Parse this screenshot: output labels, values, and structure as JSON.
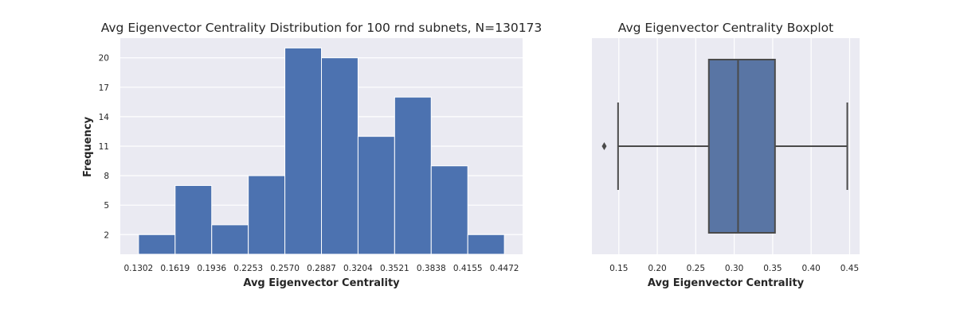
{
  "colors": {
    "panel_bg": "#eaeaf2",
    "grid": "#ffffff",
    "bar_fill": "#4c72b0",
    "box_fill": "#5975a4",
    "line": "#4a4a4a",
    "text": "#262626"
  },
  "chart_data": [
    {
      "type": "bar",
      "title": "Avg Eigenvector Centrality Distribution for 100 rnd subnets, N=130173",
      "xlabel": "Avg Eigenvector Centrality",
      "ylabel": "Frequency",
      "bin_edges": [
        0.1302,
        0.1619,
        0.1936,
        0.2253,
        0.257,
        0.2887,
        0.3204,
        0.3521,
        0.3838,
        0.4155,
        0.4472
      ],
      "x_tick_labels": [
        "0.1302",
        "0.1619",
        "0.1936",
        "0.2253",
        "0.2570",
        "0.2887",
        "0.3204",
        "0.3521",
        "0.3838",
        "0.4155",
        "0.4472"
      ],
      "values": [
        2,
        7,
        3,
        8,
        21,
        20,
        12,
        16,
        9,
        2
      ],
      "y_ticks": [
        2,
        5,
        8,
        11,
        14,
        17,
        20
      ],
      "y_tick_labels": [
        "2",
        "5",
        "8",
        "11",
        "14",
        "17",
        "20"
      ],
      "xlim": [
        0.1144,
        0.463
      ],
      "ylim": [
        0,
        22
      ],
      "grid": true
    },
    {
      "type": "box",
      "title": "Avg Eigenvector Centrality Boxplot",
      "xlabel": "Avg Eigenvector Centrality",
      "whisker_low": 0.149,
      "q1": 0.267,
      "median": 0.305,
      "q3": 0.353,
      "whisker_high": 0.447,
      "outliers": [
        0.131
      ],
      "x_ticks": [
        0.15,
        0.2,
        0.25,
        0.3,
        0.35,
        0.4,
        0.45
      ],
      "x_tick_labels": [
        "0.15",
        "0.20",
        "0.25",
        "0.30",
        "0.35",
        "0.40",
        "0.45"
      ],
      "xlim": [
        0.115,
        0.463
      ],
      "grid": true
    }
  ]
}
